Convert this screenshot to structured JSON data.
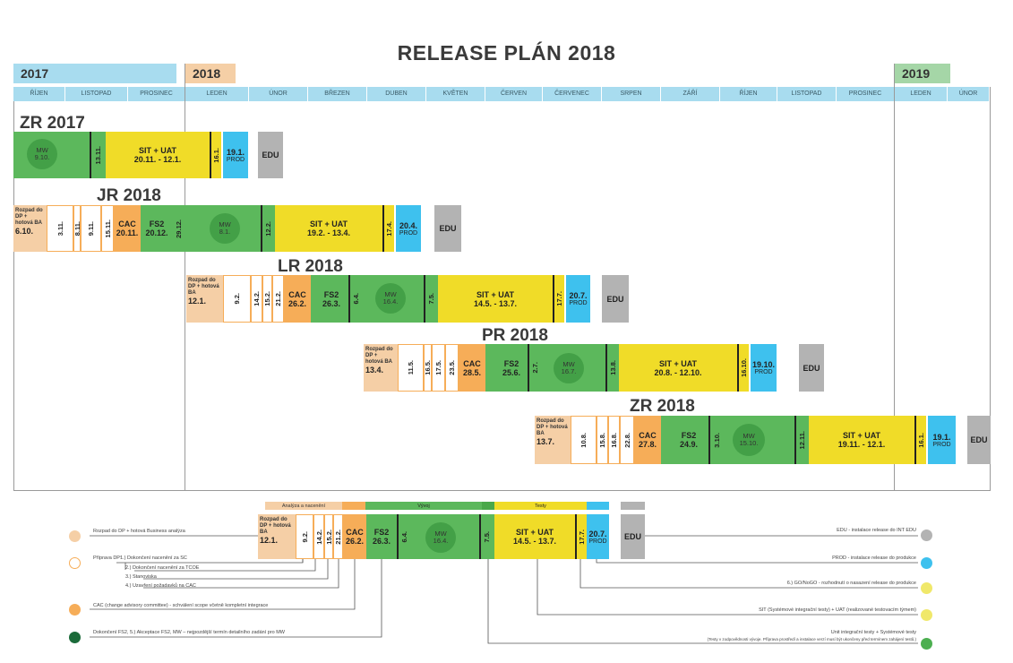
{
  "title": "RELEASE PLÁN 2018",
  "years": [
    {
      "label": "2017",
      "color": "#a8dcef"
    },
    {
      "label": "2018",
      "color": "#f5cfa6"
    },
    {
      "label": "2019",
      "color": "#a5d6a7"
    }
  ],
  "months": [
    "ŘÍJEN",
    "LISTOPAD",
    "PROSINEC",
    "LEDEN",
    "ÚNOR",
    "BŘEZEN",
    "DUBEN",
    "KVĚTEN",
    "ČERVEN",
    "ČERVENEC",
    "SRPEN",
    "ZÁŘÍ",
    "ŘÍJEN",
    "LISTOPAD",
    "PROSINEC",
    "LEDEN",
    "ÚNOR"
  ],
  "releases": {
    "zr2017": {
      "name": "ZR 2017",
      "mw": "MW",
      "mw_date": "9.10.",
      "freeze": "13.11.",
      "sit": "SIT + UAT",
      "sit_dates": "20.11. - 12.1.",
      "gonogo": "16.1.",
      "prod_date": "19.1.",
      "prod": "PROD",
      "edu": "EDU"
    },
    "jr2018": {
      "name": "JR 2018",
      "rozpad": "Rozpad do DP + hotová BA",
      "rozpad_date": "6.10.",
      "p1": "3.11.",
      "p2": "8.11.",
      "p3": "9.11.",
      "p4": "15.11.",
      "cac": "CAC",
      "cac_date": "20.11.",
      "fs2": "FS2",
      "fs2_date": "20.12.",
      "accept": "29.12.",
      "mw": "MW",
      "mw_date": "8.1.",
      "freeze": "12.2.",
      "sit": "SIT + UAT",
      "sit_dates": "19.2. - 13.4.",
      "gonogo": "17.4.",
      "prod_date": "20.4.",
      "prod": "PROD",
      "edu": "EDU"
    },
    "lr2018": {
      "name": "LR 2018",
      "rozpad": "Rozpad do DP + hotová BA",
      "rozpad_date": "12.1.",
      "p1": "9.2.",
      "p2": "14.2.",
      "p3": "15.2.",
      "p4": "21.2.",
      "cac": "CAC",
      "cac_date": "26.2.",
      "fs2": "FS2",
      "fs2_date": "26.3.",
      "accept": "6.4.",
      "mw": "MW",
      "mw_date": "16.4.",
      "freeze": "7.5.",
      "sit": "SIT + UAT",
      "sit_dates": "14.5. - 13.7.",
      "gonogo": "17.7.",
      "prod_date": "20.7.",
      "prod": "PROD",
      "edu": "EDU"
    },
    "pr2018": {
      "name": "PR 2018",
      "rozpad": "Rozpad do DP + hotová BA",
      "rozpad_date": "13.4.",
      "p1": "11.5.",
      "p2": "16.5.",
      "p3": "17.5.",
      "p4": "23.5.",
      "cac": "CAC",
      "cac_date": "28.5.",
      "fs2": "FS2",
      "fs2_date": "25.6.",
      "accept": "2.7.",
      "mw": "MW",
      "mw_date": "16.7.",
      "freeze": "13.8.",
      "sit": "SIT + UAT",
      "sit_dates": "20.8. - 12.10.",
      "gonogo": "16.10.",
      "prod_date": "19.10.",
      "prod": "PROD",
      "edu": "EDU"
    },
    "zr2018": {
      "name": "ZR 2018",
      "rozpad": "Rozpad do DP + hotová BA",
      "rozpad_date": "13.7.",
      "p1": "10.8.",
      "p2": "15.8.",
      "p3": "16.8.",
      "p4": "22.8.",
      "cac": "CAC",
      "cac_date": "27.8.",
      "fs2": "FS2",
      "fs2_date": "24.9.",
      "accept": "3.10.",
      "mw": "MW",
      "mw_date": "15.10.",
      "freeze": "12.11.",
      "sit": "SIT + UAT",
      "sit_dates": "19.11. - 12.1.",
      "gonogo": "16.1.",
      "prod_date": "19.1.",
      "prod": "PROD",
      "edu": "EDU"
    }
  },
  "legend": {
    "phases": [
      "Analýza a nacenění",
      "Vývoj",
      "Testy"
    ],
    "sample": {
      "rozpad": "Rozpad do DP + hotová BA",
      "rozpad_date": "12.1.",
      "p1": "9.2.",
      "p2": "14.2.",
      "p3": "15.2.",
      "p4": "21.2.",
      "cac": "CAC",
      "cac_date": "26.2.",
      "fs2": "FS2",
      "fs2_date": "26.3.",
      "accept": "6.4.",
      "mw": "MW",
      "mw_date": "16.4.",
      "freeze": "7.5.",
      "sit": "SIT + UAT",
      "sit_dates": "14.5. - 13.7.",
      "gonogo": "17.7.",
      "prod_date": "20.7.",
      "prod": "PROD",
      "edu": "EDU"
    },
    "left": {
      "rozpad": "Rozpad do DP + hotová Business analýza",
      "priprava": "Příprava DP:",
      "priprava_items": [
        "1.) Dokončení nacenění za SC",
        "2.) Dokončení nacenění za TCOE",
        "3.) Stanoviska",
        "4.) Uzavření požadavků na CAC"
      ],
      "cac": "CAC (change advisory committee) - schválení  scope včetně kompletní integrace",
      "dokonceni": "Dokončení FS2,  5.) Akceptace FS2, MW – nejpozdější termín detailního zadání pro MW"
    },
    "right": {
      "edu": "EDU - instalace release do INT EDU",
      "prod": "PROD - instalace release do produkce",
      "gonogo": "6.) GO/NoGO - rozhodnutí o nasazení release do produkce",
      "sit": "SIT (Systémové integrační testy) + UAT (realizované testovacím týmem)",
      "unit": "Unit integrační testy + Systémové testy",
      "unit_note": "(Testy v zodpovědnosti vývoje. Příprava prostředí a instalace verzí musí být ukončeny před termínem zahájení testů.)"
    },
    "colors": {
      "beige": "#f5cfa6",
      "orange": "#f6ad58",
      "dgreen": "#1b6b3a",
      "grey": "#b3b3b3",
      "blue": "#3ec1ee",
      "yellow": "#f0e86a"
    }
  }
}
